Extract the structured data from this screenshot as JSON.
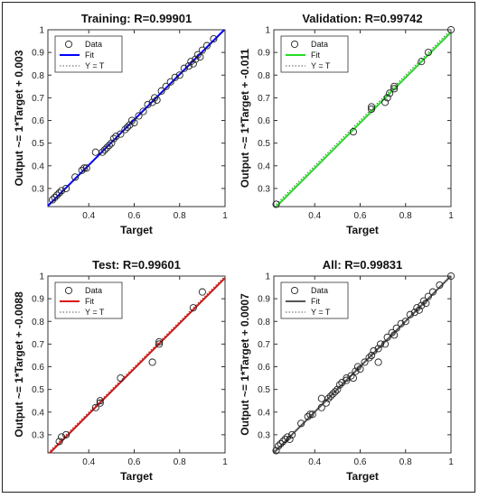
{
  "chart_data": [
    {
      "type": "scatter",
      "title": "Training: R=0.99901",
      "xlabel": "Target",
      "ylabel": "Output ~= 1*Target + 0.003",
      "xlim": [
        0.22,
        1.0
      ],
      "ylim": [
        0.22,
        1.0
      ],
      "xticks": [
        "0.4",
        "0.6",
        "0.8",
        "1"
      ],
      "yticks": [
        "0.3",
        "0.4",
        "0.5",
        "0.6",
        "0.7",
        "0.8",
        "0.9",
        "1"
      ],
      "fit_color": "#0000ff",
      "fit": {
        "slope": 1,
        "intercept": 0.003
      },
      "legend": {
        "placement": "top-left",
        "entries": [
          "Data",
          "Fit",
          "Y = T"
        ]
      },
      "points": [
        [
          0.24,
          0.25
        ],
        [
          0.25,
          0.26
        ],
        [
          0.26,
          0.27
        ],
        [
          0.27,
          0.28
        ],
        [
          0.28,
          0.29
        ],
        [
          0.3,
          0.3
        ],
        [
          0.34,
          0.35
        ],
        [
          0.37,
          0.38
        ],
        [
          0.38,
          0.39
        ],
        [
          0.39,
          0.39
        ],
        [
          0.43,
          0.46
        ],
        [
          0.46,
          0.46
        ],
        [
          0.47,
          0.47
        ],
        [
          0.48,
          0.48
        ],
        [
          0.49,
          0.49
        ],
        [
          0.5,
          0.5
        ],
        [
          0.51,
          0.52
        ],
        [
          0.52,
          0.53
        ],
        [
          0.54,
          0.54
        ],
        [
          0.56,
          0.56
        ],
        [
          0.57,
          0.57
        ],
        [
          0.58,
          0.58
        ],
        [
          0.59,
          0.6
        ],
        [
          0.6,
          0.59
        ],
        [
          0.62,
          0.62
        ],
        [
          0.64,
          0.64
        ],
        [
          0.66,
          0.67
        ],
        [
          0.68,
          0.68
        ],
        [
          0.69,
          0.7
        ],
        [
          0.7,
          0.69
        ],
        [
          0.72,
          0.73
        ],
        [
          0.74,
          0.75
        ],
        [
          0.76,
          0.77
        ],
        [
          0.78,
          0.79
        ],
        [
          0.8,
          0.8
        ],
        [
          0.82,
          0.83
        ],
        [
          0.84,
          0.84
        ],
        [
          0.85,
          0.86
        ],
        [
          0.86,
          0.85
        ],
        [
          0.87,
          0.87
        ],
        [
          0.88,
          0.89
        ],
        [
          0.89,
          0.88
        ],
        [
          0.9,
          0.91
        ],
        [
          0.92,
          0.93
        ],
        [
          0.95,
          0.96
        ]
      ]
    },
    {
      "type": "scatter",
      "title": "Validation: R=0.99742",
      "xlabel": "Target",
      "ylabel": "Output ~= 1*Target + -0.011",
      "xlim": [
        0.22,
        1.0
      ],
      "ylim": [
        0.22,
        1.0
      ],
      "xticks": [
        "0.4",
        "0.6",
        "0.8",
        "1"
      ],
      "yticks": [
        "0.3",
        "0.4",
        "0.5",
        "0.6",
        "0.7",
        "0.8",
        "0.9",
        "1"
      ],
      "fit_color": "#22dd22",
      "fit": {
        "slope": 1,
        "intercept": -0.011
      },
      "legend": {
        "placement": "top-left",
        "entries": [
          "Data",
          "Fit",
          "Y = T"
        ]
      },
      "points": [
        [
          0.23,
          0.23
        ],
        [
          0.57,
          0.55
        ],
        [
          0.65,
          0.65
        ],
        [
          0.65,
          0.66
        ],
        [
          0.71,
          0.68
        ],
        [
          0.72,
          0.7
        ],
        [
          0.73,
          0.72
        ],
        [
          0.75,
          0.74
        ],
        [
          0.75,
          0.75
        ],
        [
          0.87,
          0.86
        ],
        [
          0.9,
          0.9
        ],
        [
          1.0,
          1.0
        ]
      ]
    },
    {
      "type": "scatter",
      "title": "Test: R=0.99601",
      "xlabel": "Target",
      "ylabel": "Output ~= 1*Target + -0.0088",
      "xlim": [
        0.22,
        1.0
      ],
      "ylim": [
        0.22,
        1.0
      ],
      "xticks": [
        "0.4",
        "0.6",
        "0.8",
        "1"
      ],
      "yticks": [
        "0.3",
        "0.4",
        "0.5",
        "0.6",
        "0.7",
        "0.8",
        "0.9",
        "1"
      ],
      "fit_color": "#dd1111",
      "fit": {
        "slope": 1,
        "intercept": -0.0088
      },
      "legend": {
        "placement": "top-left",
        "entries": [
          "Data",
          "Fit",
          "Y = T"
        ]
      },
      "points": [
        [
          0.27,
          0.27
        ],
        [
          0.28,
          0.29
        ],
        [
          0.3,
          0.3
        ],
        [
          0.43,
          0.42
        ],
        [
          0.45,
          0.44
        ],
        [
          0.45,
          0.45
        ],
        [
          0.54,
          0.55
        ],
        [
          0.68,
          0.62
        ],
        [
          0.71,
          0.7
        ],
        [
          0.71,
          0.71
        ],
        [
          0.86,
          0.86
        ],
        [
          0.9,
          0.93
        ]
      ]
    },
    {
      "type": "scatter",
      "title": "All: R=0.99831",
      "xlabel": "Target",
      "ylabel": "Output ~= 1*Target + 0.0007",
      "xlim": [
        0.22,
        1.0
      ],
      "ylim": [
        0.22,
        1.0
      ],
      "xticks": [
        "0.4",
        "0.6",
        "0.8",
        "1"
      ],
      "yticks": [
        "0.3",
        "0.4",
        "0.5",
        "0.6",
        "0.7",
        "0.8",
        "0.9",
        "1"
      ],
      "fit_color": "#555555",
      "fit": {
        "slope": 1,
        "intercept": 0.0007
      },
      "legend": {
        "placement": "top-left",
        "entries": [
          "Data",
          "Fit",
          "Y = T"
        ]
      },
      "points": [
        [
          0.23,
          0.23
        ],
        [
          0.24,
          0.25
        ],
        [
          0.25,
          0.26
        ],
        [
          0.26,
          0.27
        ],
        [
          0.27,
          0.28
        ],
        [
          0.28,
          0.29
        ],
        [
          0.29,
          0.28
        ],
        [
          0.3,
          0.3
        ],
        [
          0.34,
          0.35
        ],
        [
          0.37,
          0.38
        ],
        [
          0.38,
          0.39
        ],
        [
          0.39,
          0.39
        ],
        [
          0.43,
          0.42
        ],
        [
          0.43,
          0.46
        ],
        [
          0.45,
          0.44
        ],
        [
          0.46,
          0.46
        ],
        [
          0.47,
          0.47
        ],
        [
          0.48,
          0.48
        ],
        [
          0.49,
          0.49
        ],
        [
          0.5,
          0.5
        ],
        [
          0.51,
          0.52
        ],
        [
          0.52,
          0.53
        ],
        [
          0.54,
          0.54
        ],
        [
          0.54,
          0.55
        ],
        [
          0.56,
          0.56
        ],
        [
          0.57,
          0.55
        ],
        [
          0.58,
          0.58
        ],
        [
          0.59,
          0.6
        ],
        [
          0.6,
          0.59
        ],
        [
          0.62,
          0.62
        ],
        [
          0.64,
          0.64
        ],
        [
          0.65,
          0.65
        ],
        [
          0.66,
          0.67
        ],
        [
          0.68,
          0.62
        ],
        [
          0.68,
          0.68
        ],
        [
          0.69,
          0.7
        ],
        [
          0.71,
          0.7
        ],
        [
          0.72,
          0.73
        ],
        [
          0.74,
          0.75
        ],
        [
          0.75,
          0.74
        ],
        [
          0.76,
          0.77
        ],
        [
          0.78,
          0.79
        ],
        [
          0.8,
          0.8
        ],
        [
          0.82,
          0.83
        ],
        [
          0.84,
          0.84
        ],
        [
          0.85,
          0.86
        ],
        [
          0.86,
          0.85
        ],
        [
          0.87,
          0.87
        ],
        [
          0.88,
          0.89
        ],
        [
          0.89,
          0.88
        ],
        [
          0.9,
          0.91
        ],
        [
          0.92,
          0.93
        ],
        [
          0.95,
          0.96
        ],
        [
          1.0,
          1.0
        ]
      ]
    }
  ]
}
